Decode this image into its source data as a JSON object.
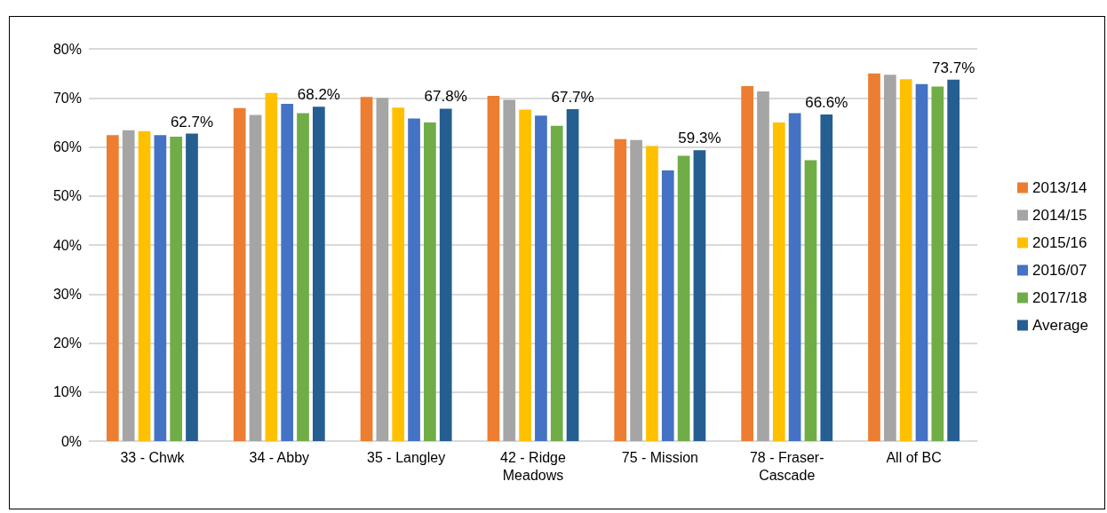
{
  "chart_data": {
    "type": "bar",
    "categories": [
      "33 - Chwk",
      "34 - Abby",
      "35 - Langley",
      "42 - Ridge\nMeadows",
      "75 - Mission",
      "78 - Fraser-\nCascade",
      "All of BC"
    ],
    "series": [
      {
        "name": "2013/14",
        "color": "#ed7d31",
        "values": [
          62.4,
          67.9,
          70.2,
          70.4,
          61.6,
          72.4,
          75.0
        ]
      },
      {
        "name": "2014/15",
        "color": "#a5a5a5",
        "values": [
          63.4,
          66.5,
          70.0,
          69.6,
          61.4,
          71.3,
          74.7
        ]
      },
      {
        "name": "2015/16",
        "color": "#ffc000",
        "values": [
          63.2,
          71.0,
          68.0,
          67.6,
          60.2,
          65.0,
          73.8
        ]
      },
      {
        "name": "2016/07",
        "color": "#4472c4",
        "values": [
          62.4,
          68.8,
          65.8,
          66.4,
          55.2,
          66.9,
          72.8
        ]
      },
      {
        "name": "2017/18",
        "color": "#70ad47",
        "values": [
          62.1,
          66.9,
          65.0,
          64.3,
          58.2,
          57.3,
          72.3
        ]
      },
      {
        "name": "Average",
        "color": "#255e91",
        "values": [
          62.7,
          68.2,
          67.8,
          67.7,
          59.3,
          66.6,
          73.7
        ],
        "value_labels": [
          "62.7%",
          "68.2%",
          "67.8%",
          "67.7%",
          "59.3%",
          "66.6%",
          "73.7%"
        ]
      }
    ],
    "ylim": [
      0,
      80
    ],
    "yticks": [
      {
        "value": 0,
        "label": "0%"
      },
      {
        "value": 10,
        "label": "10%"
      },
      {
        "value": 20,
        "label": "20%"
      },
      {
        "value": 30,
        "label": "30%"
      },
      {
        "value": 40,
        "label": "40%"
      },
      {
        "value": 50,
        "label": "50%"
      },
      {
        "value": 60,
        "label": "60%"
      },
      {
        "value": 70,
        "label": "70%"
      },
      {
        "value": 80,
        "label": "80%"
      }
    ],
    "grid": "y",
    "legend": "right"
  }
}
